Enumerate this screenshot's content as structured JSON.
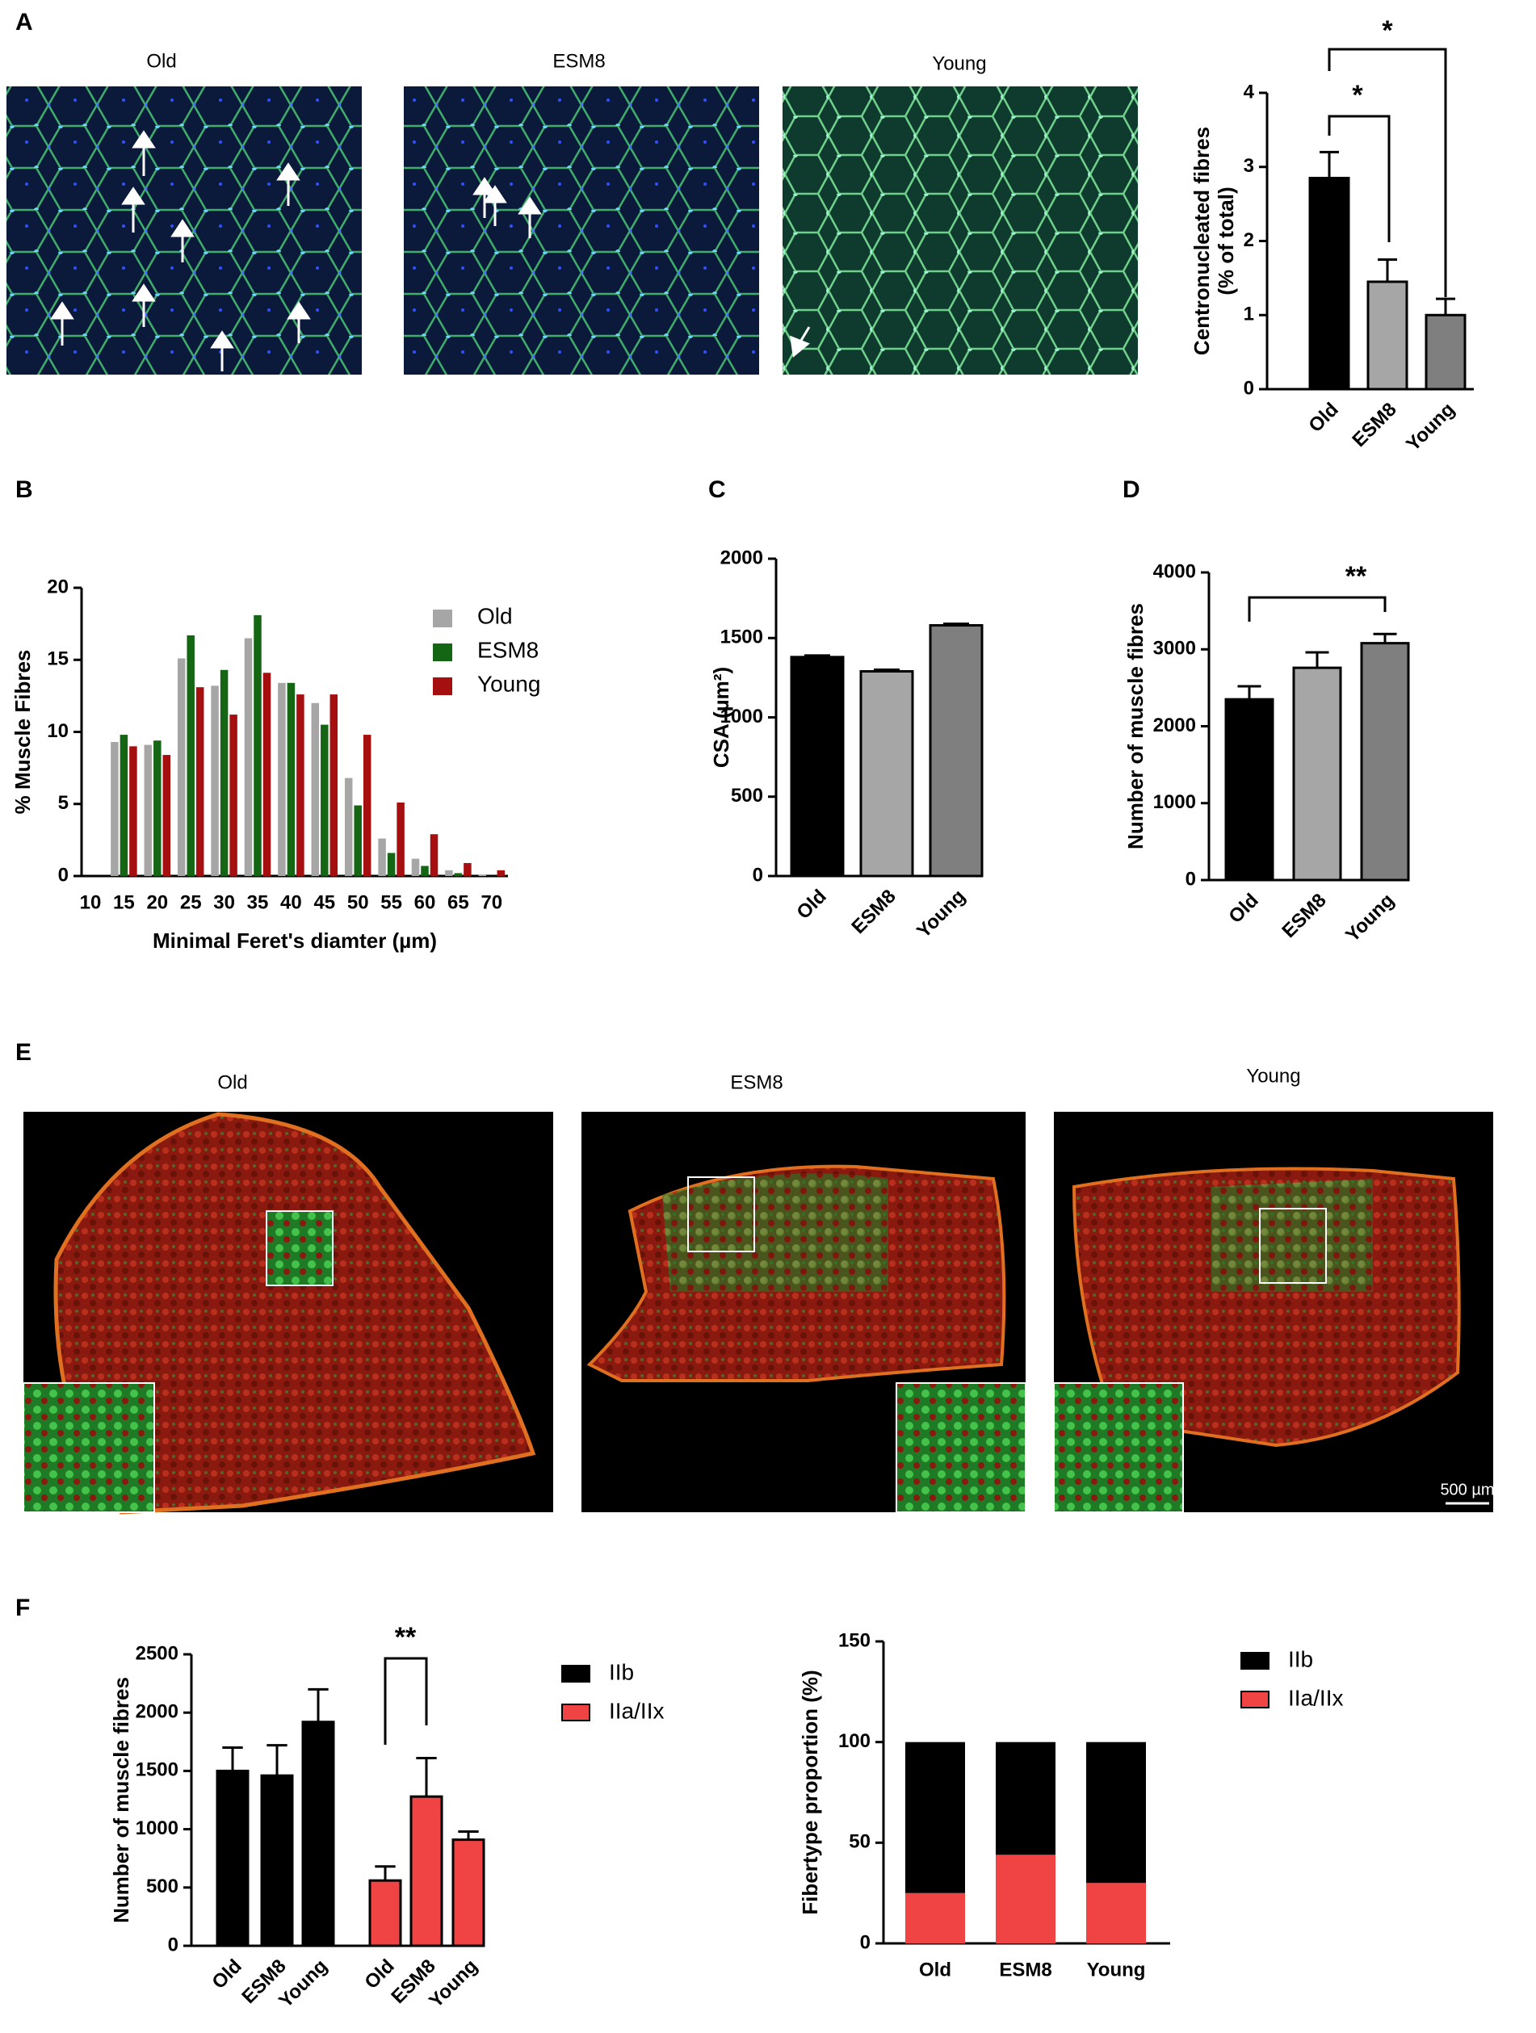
{
  "panel_letters": [
    "A",
    "B",
    "C",
    "D",
    "E",
    "F"
  ],
  "images_a": [
    "Old",
    "ESM8",
    "Young"
  ],
  "images_e": [
    "Old",
    "ESM8",
    "Young"
  ],
  "scale_bar": "500 µm",
  "chart_data": [
    {
      "type": "bar",
      "ylabel": [
        "Centronucleated fibres",
        "(% of total)"
      ],
      "categories": [
        "Old",
        "ESM8",
        "Young"
      ],
      "values": [
        2.85,
        1.45,
        1.0
      ],
      "errors": [
        0.35,
        0.3,
        0.22
      ],
      "colors": [
        "#000000",
        "#a6a6a6",
        "#7f7f7f"
      ],
      "ylim": [
        0,
        4
      ],
      "yticks": [
        0,
        1,
        2,
        3,
        4
      ],
      "annotations": [
        "*",
        "*"
      ]
    },
    {
      "type": "grouped_bar",
      "xlabel": "Minimal Feret's diamter (µm)",
      "ylabel": "% Muscle Fibres",
      "categories": [
        "10",
        "15",
        "20",
        "25",
        "30",
        "35",
        "40",
        "45",
        "50",
        "55",
        "60",
        "65",
        "70"
      ],
      "series": [
        {
          "name": "Old",
          "color": "#a6a6a6",
          "values": [
            0,
            9.3,
            9.1,
            15.1,
            13.2,
            16.5,
            13.4,
            12.0,
            6.8,
            2.6,
            1.2,
            0.4,
            0.1
          ]
        },
        {
          "name": "ESM8",
          "color": "#146614",
          "values": [
            0,
            9.8,
            9.4,
            16.7,
            14.3,
            18.1,
            13.4,
            10.5,
            4.9,
            1.6,
            0.7,
            0.2,
            0
          ]
        },
        {
          "name": "Young",
          "color": "#a50f0f",
          "values": [
            0,
            9.0,
            8.4,
            13.1,
            11.2,
            14.1,
            12.6,
            12.6,
            9.8,
            5.1,
            2.9,
            0.9,
            0.4
          ]
        }
      ],
      "ylim": [
        0,
        20
      ],
      "yticks": [
        0,
        5,
        10,
        15,
        20
      ],
      "legend": "upper right"
    },
    {
      "type": "bar",
      "ylabel": "CSA (µm²)",
      "categories": [
        "Old",
        "ESM8",
        "Young"
      ],
      "values": [
        1380,
        1290,
        1580
      ],
      "errors": [
        10,
        10,
        10
      ],
      "colors": [
        "#000000",
        "#a6a6a6",
        "#7f7f7f"
      ],
      "ylim": [
        0,
        2000
      ],
      "yticks": [
        0,
        500,
        1000,
        1500,
        2000
      ],
      "annotations": []
    },
    {
      "type": "bar",
      "ylabel": "Number of muscle fibres",
      "categories": [
        "Old",
        "ESM8",
        "Young"
      ],
      "values": [
        2350,
        2760,
        3080
      ],
      "errors": [
        170,
        200,
        120
      ],
      "colors": [
        "#000000",
        "#a6a6a6",
        "#7f7f7f"
      ],
      "ylim": [
        0,
        4000
      ],
      "yticks": [
        0,
        1000,
        2000,
        3000,
        4000
      ],
      "annotations": [
        "**"
      ]
    },
    {
      "type": "group_bar",
      "ylabel": "Number of muscle fibres",
      "categories": [
        "Old",
        "ESM8",
        "Young"
      ],
      "series": [
        {
          "name": "IIb",
          "color": "#000000",
          "values": [
            1500,
            1460,
            1920
          ],
          "errors": [
            200,
            260,
            280
          ]
        },
        {
          "name": "IIa/IIx",
          "color": "#f04444",
          "values": [
            560,
            1280,
            910
          ],
          "errors": [
            120,
            330,
            70
          ]
        }
      ],
      "ylim": [
        0,
        2500
      ],
      "yticks": [
        0,
        500,
        1000,
        1500,
        2000,
        2500
      ],
      "annotations": [
        "**"
      ],
      "legend": "right"
    },
    {
      "type": "stacked_bar",
      "ylabel": "Fibertype proportion (%)",
      "categories": [
        "Old",
        "ESM8",
        "Young"
      ],
      "series": [
        {
          "name": "IIb",
          "color": "#000000",
          "values": [
            75,
            56,
            70
          ]
        },
        {
          "name": "IIa/IIx",
          "color": "#f04444",
          "values": [
            25,
            44,
            30
          ]
        }
      ],
      "ylim": [
        0,
        150
      ],
      "yticks": [
        0,
        50,
        100,
        150
      ],
      "legend": "right"
    }
  ]
}
